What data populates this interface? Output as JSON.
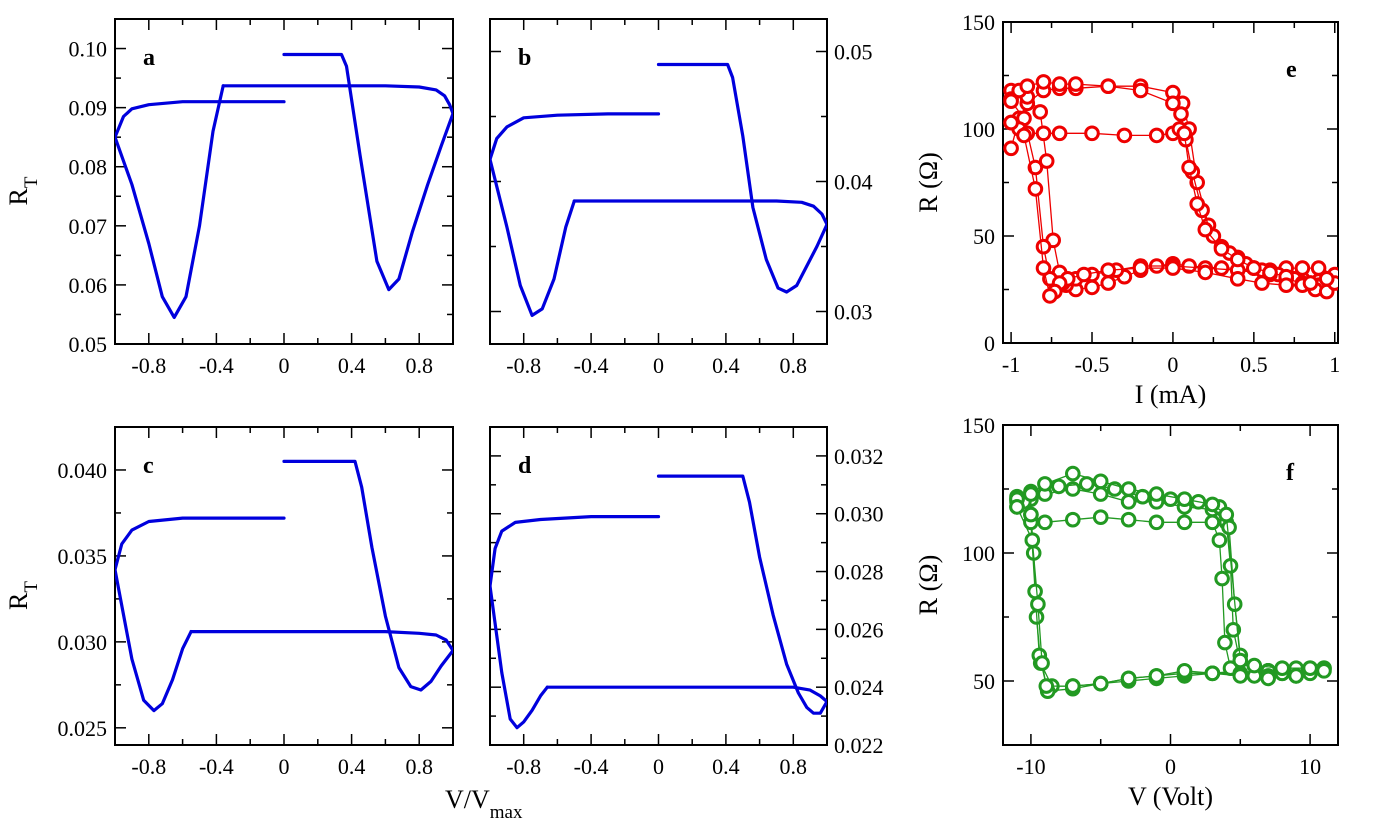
{
  "figure": {
    "shared_xlabel_main": "V/V",
    "shared_xlabel_sub": "max"
  },
  "chart_data": [
    {
      "id": "a",
      "type": "line",
      "letter": "a",
      "ylabel_main": "R",
      "ylabel_sub": "T",
      "y_axis_side": "left",
      "xlim": [
        -1,
        1
      ],
      "ylim": [
        0.05,
        0.105
      ],
      "xticks": [
        -0.8,
        -0.4,
        0,
        0.4,
        0.8
      ],
      "xtick_labels": [
        "-0.8",
        "-0.4",
        "0",
        "0.4",
        "0.8"
      ],
      "yticks": [
        0.05,
        0.06,
        0.07,
        0.08,
        0.09,
        0.1
      ],
      "ytick_labels": [
        "0.05",
        "0.06",
        "0.07",
        "0.08",
        "0.09",
        "0.10"
      ],
      "color": "#0000dd",
      "series": [
        {
          "name": "branch 1",
          "x": [
            0,
            0.34,
            0.37,
            0.45,
            0.55,
            0.62,
            0.68,
            0.76,
            0.85,
            0.93,
            1.0
          ],
          "y": [
            0.099,
            0.099,
            0.097,
            0.082,
            0.064,
            0.0592,
            0.061,
            0.069,
            0.077,
            0.0835,
            0.089
          ]
        },
        {
          "name": "branch 2",
          "x": [
            1.0,
            0.98,
            0.95,
            0.9,
            0.8,
            0.6,
            0.3,
            0,
            -0.36
          ],
          "y": [
            0.089,
            0.0905,
            0.092,
            0.093,
            0.0935,
            0.0937,
            0.0937,
            0.0937,
            0.0937
          ]
        },
        {
          "name": "branch 3",
          "x": [
            -0.36,
            -0.42,
            -0.5,
            -0.58,
            -0.65,
            -0.72,
            -0.8,
            -0.9,
            -1.0
          ],
          "y": [
            0.0937,
            0.086,
            0.07,
            0.058,
            0.0545,
            0.058,
            0.067,
            0.077,
            0.085
          ]
        },
        {
          "name": "branch 4",
          "x": [
            -1.0,
            -0.95,
            -0.9,
            -0.8,
            -0.6,
            -0.3,
            0
          ],
          "y": [
            0.085,
            0.0885,
            0.0898,
            0.0905,
            0.091,
            0.091,
            0.091
          ]
        }
      ]
    },
    {
      "id": "b",
      "type": "line",
      "letter": "b",
      "ylabel_main": "",
      "ylabel_sub": "",
      "y_axis_side": "right",
      "xlim": [
        -1,
        1
      ],
      "ylim": [
        0.0275,
        0.0525
      ],
      "xticks": [
        -0.8,
        -0.4,
        0,
        0.4,
        0.8
      ],
      "xtick_labels": [
        "-0.8",
        "-0.4",
        "0",
        "0.4",
        "0.8"
      ],
      "yticks": [
        0.03,
        0.04,
        0.05
      ],
      "ytick_labels": [
        "0.03",
        "0.04",
        "0.05"
      ],
      "color": "#0000dd",
      "series": [
        {
          "name": "branch 1",
          "x": [
            0,
            0.41,
            0.44,
            0.5,
            0.56,
            0.64,
            0.71,
            0.76,
            0.82,
            0.88,
            0.94,
            1.0
          ],
          "y": [
            0.049,
            0.049,
            0.048,
            0.0435,
            0.038,
            0.034,
            0.0318,
            0.0315,
            0.032,
            0.0335,
            0.035,
            0.0367
          ]
        },
        {
          "name": "branch 2",
          "x": [
            1.0,
            0.97,
            0.92,
            0.85,
            0.7,
            0.4,
            0,
            -0.5
          ],
          "y": [
            0.0367,
            0.0375,
            0.0381,
            0.0384,
            0.0385,
            0.0385,
            0.0385,
            0.0385
          ]
        },
        {
          "name": "branch 3",
          "x": [
            -0.5,
            -0.55,
            -0.62,
            -0.69,
            -0.75,
            -0.82,
            -0.9,
            -1.0
          ],
          "y": [
            0.0385,
            0.0365,
            0.0325,
            0.0302,
            0.0297,
            0.032,
            0.0365,
            0.0417
          ]
        },
        {
          "name": "branch 4",
          "x": [
            -1.0,
            -0.96,
            -0.9,
            -0.8,
            -0.6,
            -0.3,
            0
          ],
          "y": [
            0.0417,
            0.0433,
            0.0442,
            0.0449,
            0.0451,
            0.0452,
            0.0452
          ]
        }
      ]
    },
    {
      "id": "c",
      "type": "line",
      "letter": "c",
      "ylabel_main": "R",
      "ylabel_sub": "T",
      "y_axis_side": "left",
      "xlim": [
        -1,
        1
      ],
      "ylim": [
        0.024,
        0.0425
      ],
      "xticks": [
        -0.8,
        -0.4,
        0,
        0.4,
        0.8
      ],
      "xtick_labels": [
        "-0.8",
        "-0.4",
        "0",
        "0.4",
        "0.8"
      ],
      "yticks": [
        0.025,
        0.03,
        0.035,
        0.04
      ],
      "ytick_labels": [
        "0.025",
        "0.030",
        "0.035",
        "0.040"
      ],
      "color": "#0000dd",
      "series": [
        {
          "name": "branch 1",
          "x": [
            0,
            0.42,
            0.46,
            0.52,
            0.6,
            0.68,
            0.75,
            0.81,
            0.87,
            0.93,
            1.0
          ],
          "y": [
            0.0405,
            0.0405,
            0.039,
            0.0355,
            0.0315,
            0.0285,
            0.0274,
            0.0272,
            0.0277,
            0.0286,
            0.0295
          ]
        },
        {
          "name": "branch 2",
          "x": [
            1.0,
            0.96,
            0.9,
            0.8,
            0.6,
            0.3,
            0,
            -0.55
          ],
          "y": [
            0.0295,
            0.0301,
            0.0304,
            0.0305,
            0.0306,
            0.0306,
            0.0306,
            0.0306
          ]
        },
        {
          "name": "branch 3",
          "x": [
            -0.55,
            -0.6,
            -0.66,
            -0.72,
            -0.77,
            -0.83,
            -0.9,
            -1.0
          ],
          "y": [
            0.0306,
            0.0296,
            0.0278,
            0.0264,
            0.026,
            0.0266,
            0.029,
            0.0342
          ]
        },
        {
          "name": "branch 4",
          "x": [
            -1.0,
            -0.96,
            -0.9,
            -0.8,
            -0.6,
            -0.3,
            0
          ],
          "y": [
            0.0342,
            0.0357,
            0.0365,
            0.037,
            0.0372,
            0.0372,
            0.0372
          ]
        }
      ]
    },
    {
      "id": "d",
      "type": "line",
      "letter": "d",
      "ylabel_main": "",
      "ylabel_sub": "",
      "y_axis_side": "right",
      "xlim": [
        -1,
        1
      ],
      "ylim": [
        0.022,
        0.033
      ],
      "xticks": [
        -0.8,
        -0.4,
        0,
        0.4,
        0.8
      ],
      "xtick_labels": [
        "-0.8",
        "-0.4",
        "0",
        "0.4",
        "0.8"
      ],
      "yticks": [
        0.022,
        0.024,
        0.026,
        0.028,
        0.03,
        0.032
      ],
      "ytick_labels": [
        "0.022",
        "0.024",
        "0.026",
        "0.028",
        "0.030",
        "0.032"
      ],
      "color": "#0000dd",
      "series": [
        {
          "name": "branch 1",
          "x": [
            0,
            0.5,
            0.54,
            0.6,
            0.68,
            0.76,
            0.83,
            0.88,
            0.92,
            0.96,
            1.0
          ],
          "y": [
            0.0313,
            0.0313,
            0.0304,
            0.0285,
            0.0265,
            0.0248,
            0.0238,
            0.0233,
            0.0231,
            0.0231,
            0.0235
          ]
        },
        {
          "name": "branch 2",
          "x": [
            1.0,
            0.96,
            0.9,
            0.8,
            0.6,
            0.3,
            0,
            -0.66
          ],
          "y": [
            0.0235,
            0.0237,
            0.0239,
            0.024,
            0.024,
            0.024,
            0.024,
            0.024
          ]
        },
        {
          "name": "branch 3",
          "x": [
            -0.66,
            -0.7,
            -0.75,
            -0.8,
            -0.84,
            -0.88,
            -0.93,
            -1.0
          ],
          "y": [
            0.024,
            0.0237,
            0.0232,
            0.0228,
            0.0226,
            0.0229,
            0.0245,
            0.0275
          ]
        },
        {
          "name": "branch 4",
          "x": [
            -1.0,
            -0.97,
            -0.93,
            -0.85,
            -0.7,
            -0.4,
            0
          ],
          "y": [
            0.0275,
            0.0288,
            0.0294,
            0.0297,
            0.0298,
            0.0299,
            0.0299
          ]
        }
      ]
    },
    {
      "id": "e",
      "type": "line",
      "letter": "e",
      "xlabel": "I (mA)",
      "ylabel": "R (Ω)",
      "y_axis_side": "left",
      "xlim": [
        -1.05,
        1.02
      ],
      "ylim": [
        0,
        150
      ],
      "xticks": [
        -1,
        -0.5,
        0,
        0.5,
        1
      ],
      "xtick_labels": [
        "-1",
        "-0.5",
        "0",
        "0.5",
        "1"
      ],
      "yticks": [
        0,
        50,
        100,
        150
      ],
      "ytick_labels": [
        "0",
        "50",
        "100",
        "150"
      ],
      "color": "#ee0000",
      "marker": "circle",
      "series": [
        {
          "name": "loop 1",
          "x": [
            -1.0,
            -0.95,
            -0.9,
            -0.8,
            -0.7,
            -0.6,
            -0.4,
            -0.2,
            0,
            0.06,
            0.1,
            0.15,
            0.22,
            0.3,
            0.4,
            0.5,
            0.6,
            0.7,
            0.8,
            0.9,
            1.0,
            0.9,
            0.8,
            0.7,
            0.5,
            0.3,
            0.1,
            0,
            -0.1,
            -0.2,
            -0.3,
            -0.4,
            -0.5,
            -0.6,
            -0.66,
            -0.7,
            -0.74,
            -0.78,
            -0.82,
            -0.9,
            -1.0
          ],
          "y": [
            91,
            105,
            112,
            118,
            119,
            119,
            120,
            120,
            117,
            112,
            100,
            75,
            55,
            45,
            40,
            35,
            34,
            32,
            30,
            29,
            32,
            35,
            35,
            35,
            35,
            35,
            36,
            37,
            36,
            34,
            31,
            28,
            26,
            25,
            27,
            33,
            48,
            85,
            108,
            115,
            118
          ]
        },
        {
          "name": "loop 2",
          "x": [
            -1.0,
            -0.95,
            -0.9,
            -0.8,
            -0.7,
            -0.6,
            -0.4,
            -0.2,
            0,
            0.05,
            0.08,
            0.12,
            0.18,
            0.25,
            0.35,
            0.45,
            0.55,
            0.65,
            0.75,
            0.85,
            0.95,
            0.9,
            0.8,
            0.7,
            0.6,
            0.4,
            0.2,
            0,
            -0.2,
            -0.35,
            -0.5,
            -0.6,
            -0.68,
            -0.72,
            -0.76,
            -0.8,
            -0.85,
            -0.92,
            -1.0
          ],
          "y": [
            114,
            118,
            120,
            122,
            121,
            121,
            120,
            118,
            112,
            107,
            95,
            80,
            62,
            50,
            42,
            37,
            34,
            32,
            30,
            28,
            26,
            27,
            28,
            30,
            32,
            34,
            35,
            36,
            36,
            34,
            32,
            30,
            28,
            28,
            30,
            45,
            82,
            105,
            113
          ]
        },
        {
          "name": "loop 3",
          "x": [
            -1.0,
            -0.95,
            -0.9,
            -0.8,
            -0.7,
            -0.5,
            -0.3,
            -0.1,
            0,
            0.04,
            0.07,
            0.1,
            0.15,
            0.2,
            0.3,
            0.4,
            0.5,
            0.6,
            0.7,
            0.8,
            0.88,
            0.95,
            1.0,
            0.95,
            0.85,
            0.7,
            0.55,
            0.4,
            0.2,
            0,
            -0.2,
            -0.4,
            -0.55,
            -0.65,
            -0.7,
            -0.73,
            -0.76,
            -0.8,
            -0.85,
            -0.92,
            -1.0
          ],
          "y": [
            103,
            100,
            98,
            98,
            98,
            98,
            97,
            97,
            98,
            100,
            98,
            82,
            65,
            53,
            44,
            39,
            35,
            33,
            31,
            27,
            25,
            24,
            28,
            30,
            28,
            27,
            28,
            30,
            33,
            35,
            35,
            34,
            32,
            30,
            28,
            24,
            22,
            35,
            72,
            97,
            103
          ]
        }
      ]
    },
    {
      "id": "f",
      "type": "line",
      "letter": "f",
      "xlabel": "V (Volt)",
      "ylabel": "R (Ω)",
      "y_axis_side": "left",
      "xlim": [
        -12,
        12
      ],
      "ylim": [
        25,
        150
      ],
      "xticks": [
        -10,
        0,
        10
      ],
      "xtick_labels": [
        "-10",
        "0",
        "10"
      ],
      "yticks": [
        50,
        100,
        150
      ],
      "ytick_labels": [
        "50",
        "100",
        "150"
      ],
      "color": "#229922",
      "marker": "circle",
      "series": [
        {
          "name": "loop 1",
          "x": [
            -11,
            -10,
            -9,
            -7,
            -5,
            -3,
            -1,
            1,
            3,
            4,
            4.3,
            4.5,
            5,
            6,
            7,
            8,
            9,
            10,
            11,
            10,
            9,
            8,
            7,
            5,
            3,
            1,
            -1,
            -3,
            -5,
            -7,
            -8.5,
            -9.3,
            -9.6,
            -9.8,
            -10,
            -10.5,
            -11
          ],
          "y": [
            120,
            121,
            123,
            125,
            123,
            120,
            120,
            118,
            117,
            112,
            95,
            70,
            57,
            55,
            54,
            53,
            54,
            54,
            55,
            55,
            54,
            54,
            54,
            54,
            53,
            52,
            51,
            50,
            49,
            48,
            48,
            57,
            75,
            100,
            115,
            120,
            122
          ]
        },
        {
          "name": "loop 2",
          "x": [
            -11,
            -10,
            -8,
            -6,
            -4,
            -2,
            0,
            2,
            3.5,
            4.2,
            4.6,
            5,
            5.5,
            7,
            9,
            11,
            9,
            7,
            5,
            3,
            1,
            -1,
            -3,
            -5,
            -7,
            -8.8,
            -9.4,
            -9.7,
            -10,
            -11
          ],
          "y": [
            121,
            124,
            126,
            127,
            125,
            122,
            121,
            120,
            118,
            110,
            80,
            60,
            54,
            54,
            55,
            55,
            52,
            52,
            53,
            53,
            53,
            52,
            51,
            49,
            47,
            46,
            60,
            85,
            112,
            121
          ]
        },
        {
          "name": "loop 3",
          "x": [
            -11,
            -10,
            -9,
            -7,
            -5,
            -3,
            -1,
            1,
            3,
            3.5,
            3.7,
            3.9,
            4.3,
            5,
            6,
            8,
            10,
            11,
            9,
            7,
            5,
            3,
            1,
            -1,
            -3,
            -5,
            -7,
            -8.9,
            -9.2,
            -9.5,
            -9.9,
            -11
          ],
          "y": [
            118,
            115,
            112,
            113,
            114,
            113,
            112,
            112,
            112,
            105,
            90,
            65,
            55,
            53,
            52,
            53,
            53,
            54,
            52,
            51,
            52,
            53,
            54,
            52,
            51,
            49,
            48,
            48,
            57,
            80,
            105,
            118
          ]
        },
        {
          "name": "loop 4",
          "x": [
            -10,
            -9,
            -7,
            -5,
            -3,
            -1,
            1,
            3,
            4,
            5,
            6,
            8,
            10
          ],
          "y": [
            123,
            127,
            131,
            128,
            125,
            123,
            121,
            119,
            115,
            58,
            56,
            55,
            55
          ]
        }
      ]
    }
  ]
}
